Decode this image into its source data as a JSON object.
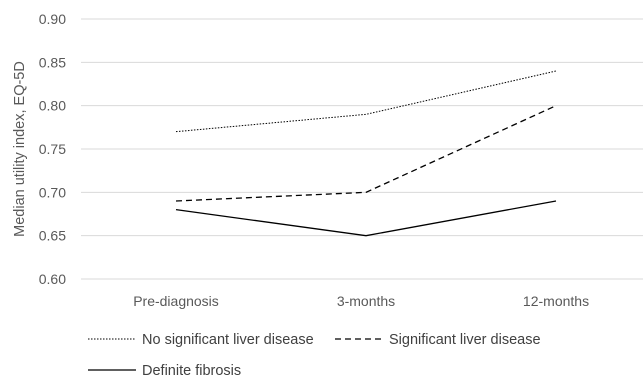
{
  "chart_data": {
    "type": "line",
    "categories": [
      "Pre-diagnosis",
      "3-months",
      "12-months"
    ],
    "series": [
      {
        "name": "No significant liver disease",
        "values": [
          0.77,
          0.79,
          0.84
        ],
        "dash": "dotted"
      },
      {
        "name": "Significant liver disease",
        "values": [
          0.69,
          0.7,
          0.8
        ],
        "dash": "dashed"
      },
      {
        "name": "Definite fibrosis",
        "values": [
          0.68,
          0.65,
          0.69
        ],
        "dash": "solid"
      }
    ],
    "ylabel": "Median utility index, EQ-5D",
    "ylim": [
      0.6,
      0.9
    ],
    "yticks": [
      "0.60",
      "0.65",
      "0.70",
      "0.75",
      "0.80",
      "0.85",
      "0.90"
    ],
    "grid": "horizontal",
    "legend": "bottom",
    "colors": {
      "line": "#000000",
      "gridline": "#d9d9d9",
      "text": "#595959"
    }
  }
}
